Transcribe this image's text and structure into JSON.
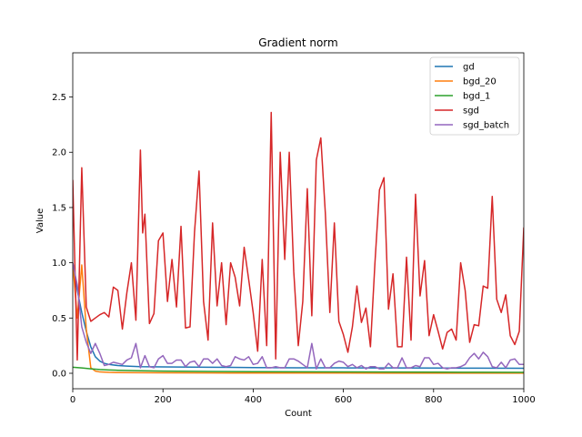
{
  "chart_data": {
    "type": "line",
    "title": "Gradient norm",
    "xlabel": "Count",
    "ylabel": "Value",
    "xlim": [
      0,
      1000
    ],
    "ylim": [
      -0.14,
      2.9
    ],
    "xticks": [
      0,
      200,
      400,
      600,
      800,
      1000
    ],
    "yticks": [
      0.0,
      0.5,
      1.0,
      1.5,
      2.0,
      2.5
    ],
    "xtick_labels": [
      "0",
      "200",
      "400",
      "600",
      "800",
      "1000"
    ],
    "ytick_labels": [
      "0.0",
      "0.5",
      "1.0",
      "1.5",
      "2.0",
      "2.5"
    ],
    "grid": false,
    "legend_position": "top-right",
    "series": [
      {
        "name": "gd",
        "color": "#1f77b4",
        "x": [
          0,
          10,
          20,
          30,
          40,
          50,
          60,
          70,
          80,
          100,
          120,
          150,
          200,
          300,
          400,
          500,
          600,
          700,
          800,
          900,
          1000
        ],
        "y": [
          1.0,
          0.75,
          0.55,
          0.38,
          0.24,
          0.15,
          0.11,
          0.09,
          0.08,
          0.07,
          0.065,
          0.06,
          0.058,
          0.055,
          0.052,
          0.05,
          0.049,
          0.048,
          0.047,
          0.046,
          0.045
        ]
      },
      {
        "name": "bgd_20",
        "color": "#ff7f0e",
        "x": [
          0,
          10,
          20,
          30,
          40,
          50,
          60,
          80,
          100,
          150,
          200,
          300,
          400,
          500,
          600,
          700,
          800,
          900,
          1000
        ],
        "y": [
          1.0,
          0.5,
          0.98,
          0.4,
          0.05,
          0.02,
          0.012,
          0.008,
          0.006,
          0.005,
          0.004,
          0.003,
          0.002,
          0.002,
          0.002,
          0.001,
          0.001,
          0.001,
          0.001
        ]
      },
      {
        "name": "bgd_1",
        "color": "#2ca02c",
        "x": [
          0,
          20,
          40,
          60,
          80,
          100,
          150,
          200,
          300,
          400,
          500,
          600,
          700,
          800,
          900,
          1000
        ],
        "y": [
          0.055,
          0.048,
          0.04,
          0.034,
          0.03,
          0.027,
          0.023,
          0.02,
          0.017,
          0.015,
          0.013,
          0.012,
          0.011,
          0.01,
          0.009,
          0.008
        ]
      },
      {
        "name": "sgd",
        "color": "#d62728",
        "x": [
          0,
          10,
          20,
          30,
          40,
          50,
          60,
          70,
          80,
          90,
          100,
          110,
          120,
          130,
          140,
          150,
          155,
          160,
          170,
          180,
          190,
          200,
          210,
          220,
          230,
          240,
          250,
          260,
          270,
          280,
          290,
          300,
          310,
          320,
          330,
          340,
          350,
          360,
          370,
          380,
          390,
          400,
          410,
          420,
          430,
          440,
          450,
          460,
          470,
          480,
          490,
          500,
          510,
          520,
          530,
          540,
          550,
          560,
          570,
          580,
          590,
          600,
          610,
          620,
          630,
          640,
          650,
          660,
          670,
          680,
          690,
          700,
          710,
          720,
          730,
          740,
          750,
          760,
          770,
          780,
          790,
          800,
          810,
          820,
          830,
          840,
          850,
          860,
          870,
          880,
          890,
          900,
          910,
          920,
          930,
          940,
          950,
          960,
          970,
          980,
          990,
          1000
        ],
        "y": [
          1.75,
          0.12,
          1.86,
          0.6,
          0.47,
          0.5,
          0.53,
          0.55,
          0.51,
          0.78,
          0.75,
          0.4,
          0.73,
          1.0,
          0.48,
          2.02,
          1.27,
          1.44,
          0.45,
          0.54,
          1.2,
          1.27,
          0.65,
          1.03,
          0.6,
          1.33,
          0.41,
          0.42,
          1.28,
          1.83,
          0.65,
          0.3,
          1.36,
          0.61,
          1.0,
          0.44,
          1.0,
          0.87,
          0.61,
          1.14,
          0.85,
          0.55,
          0.2,
          1.03,
          0.25,
          2.36,
          0.13,
          2.0,
          1.03,
          2.0,
          0.92,
          0.25,
          0.65,
          1.67,
          0.52,
          1.93,
          2.13,
          1.45,
          0.55,
          1.36,
          0.47,
          0.35,
          0.19,
          0.42,
          0.79,
          0.46,
          0.59,
          0.24,
          1.0,
          1.66,
          1.77,
          0.58,
          0.9,
          0.24,
          0.24,
          1.05,
          0.3,
          1.62,
          0.7,
          1.02,
          0.34,
          0.53,
          0.38,
          0.22,
          0.37,
          0.4,
          0.3,
          1.0,
          0.75,
          0.28,
          0.44,
          0.43,
          0.79,
          0.77,
          1.6,
          0.67,
          0.55,
          0.71,
          0.34,
          0.26,
          0.38,
          1.32
        ]
      },
      {
        "name": "sgd_batch",
        "color": "#9467bd",
        "x": [
          0,
          10,
          20,
          30,
          40,
          50,
          60,
          70,
          80,
          90,
          100,
          110,
          120,
          130,
          140,
          150,
          160,
          170,
          180,
          190,
          200,
          210,
          220,
          230,
          240,
          250,
          260,
          270,
          280,
          290,
          300,
          310,
          320,
          330,
          340,
          350,
          360,
          370,
          380,
          390,
          400,
          410,
          420,
          430,
          440,
          450,
          460,
          470,
          480,
          490,
          500,
          510,
          520,
          530,
          540,
          550,
          560,
          570,
          580,
          590,
          600,
          610,
          620,
          630,
          640,
          650,
          660,
          670,
          680,
          690,
          700,
          710,
          720,
          730,
          740,
          750,
          760,
          770,
          780,
          790,
          800,
          810,
          820,
          830,
          840,
          850,
          860,
          870,
          880,
          890,
          900,
          910,
          920,
          930,
          940,
          950,
          960,
          970,
          980,
          990,
          1000
        ],
        "y": [
          1.0,
          0.8,
          0.42,
          0.28,
          0.18,
          0.27,
          0.18,
          0.07,
          0.08,
          0.1,
          0.09,
          0.08,
          0.12,
          0.14,
          0.27,
          0.05,
          0.16,
          0.06,
          0.05,
          0.13,
          0.16,
          0.09,
          0.09,
          0.12,
          0.12,
          0.06,
          0.1,
          0.11,
          0.06,
          0.13,
          0.13,
          0.09,
          0.13,
          0.07,
          0.06,
          0.07,
          0.15,
          0.13,
          0.12,
          0.15,
          0.08,
          0.09,
          0.15,
          0.05,
          0.05,
          0.06,
          0.05,
          0.05,
          0.13,
          0.13,
          0.11,
          0.08,
          0.05,
          0.27,
          0.04,
          0.13,
          0.05,
          0.05,
          0.09,
          0.11,
          0.1,
          0.06,
          0.08,
          0.05,
          0.07,
          0.04,
          0.06,
          0.06,
          0.04,
          0.04,
          0.09,
          0.05,
          0.05,
          0.14,
          0.05,
          0.05,
          0.07,
          0.06,
          0.14,
          0.14,
          0.08,
          0.09,
          0.05,
          0.04,
          0.05,
          0.05,
          0.06,
          0.08,
          0.14,
          0.18,
          0.13,
          0.19,
          0.15,
          0.06,
          0.05,
          0.1,
          0.05,
          0.12,
          0.13,
          0.08,
          0.08
        ]
      }
    ]
  }
}
